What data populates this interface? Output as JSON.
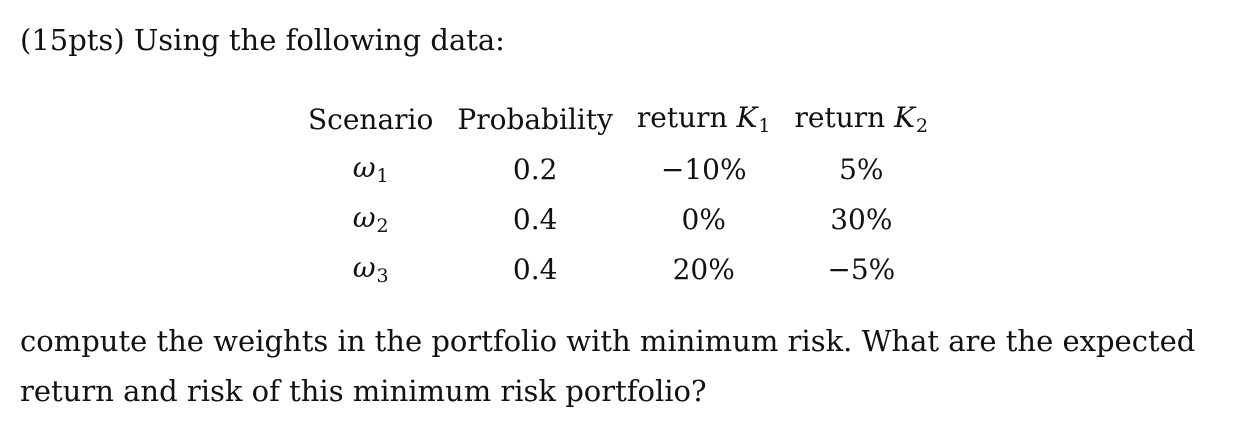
{
  "intro": "(15pts) Using the following data:",
  "table": {
    "headers": {
      "scenario": "Scenario",
      "probability": "Probability",
      "return1_prefix": "return",
      "return1_var": "K",
      "return1_sub": "1",
      "return2_prefix": "return",
      "return2_var": "K",
      "return2_sub": "2"
    },
    "rows": [
      {
        "scenario_var": "ω",
        "scenario_sub": "1",
        "probability": "0.2",
        "return1": "−10%",
        "return2": "5%"
      },
      {
        "scenario_var": "ω",
        "scenario_sub": "2",
        "probability": "0.4",
        "return1": "0%",
        "return2": "30%"
      },
      {
        "scenario_var": "ω",
        "scenario_sub": "3",
        "probability": "0.4",
        "return1": "20%",
        "return2": "−5%"
      }
    ]
  },
  "question": "compute the weights in the portfolio with minimum risk. What are the expected return and risk of this minimum risk portfolio?"
}
